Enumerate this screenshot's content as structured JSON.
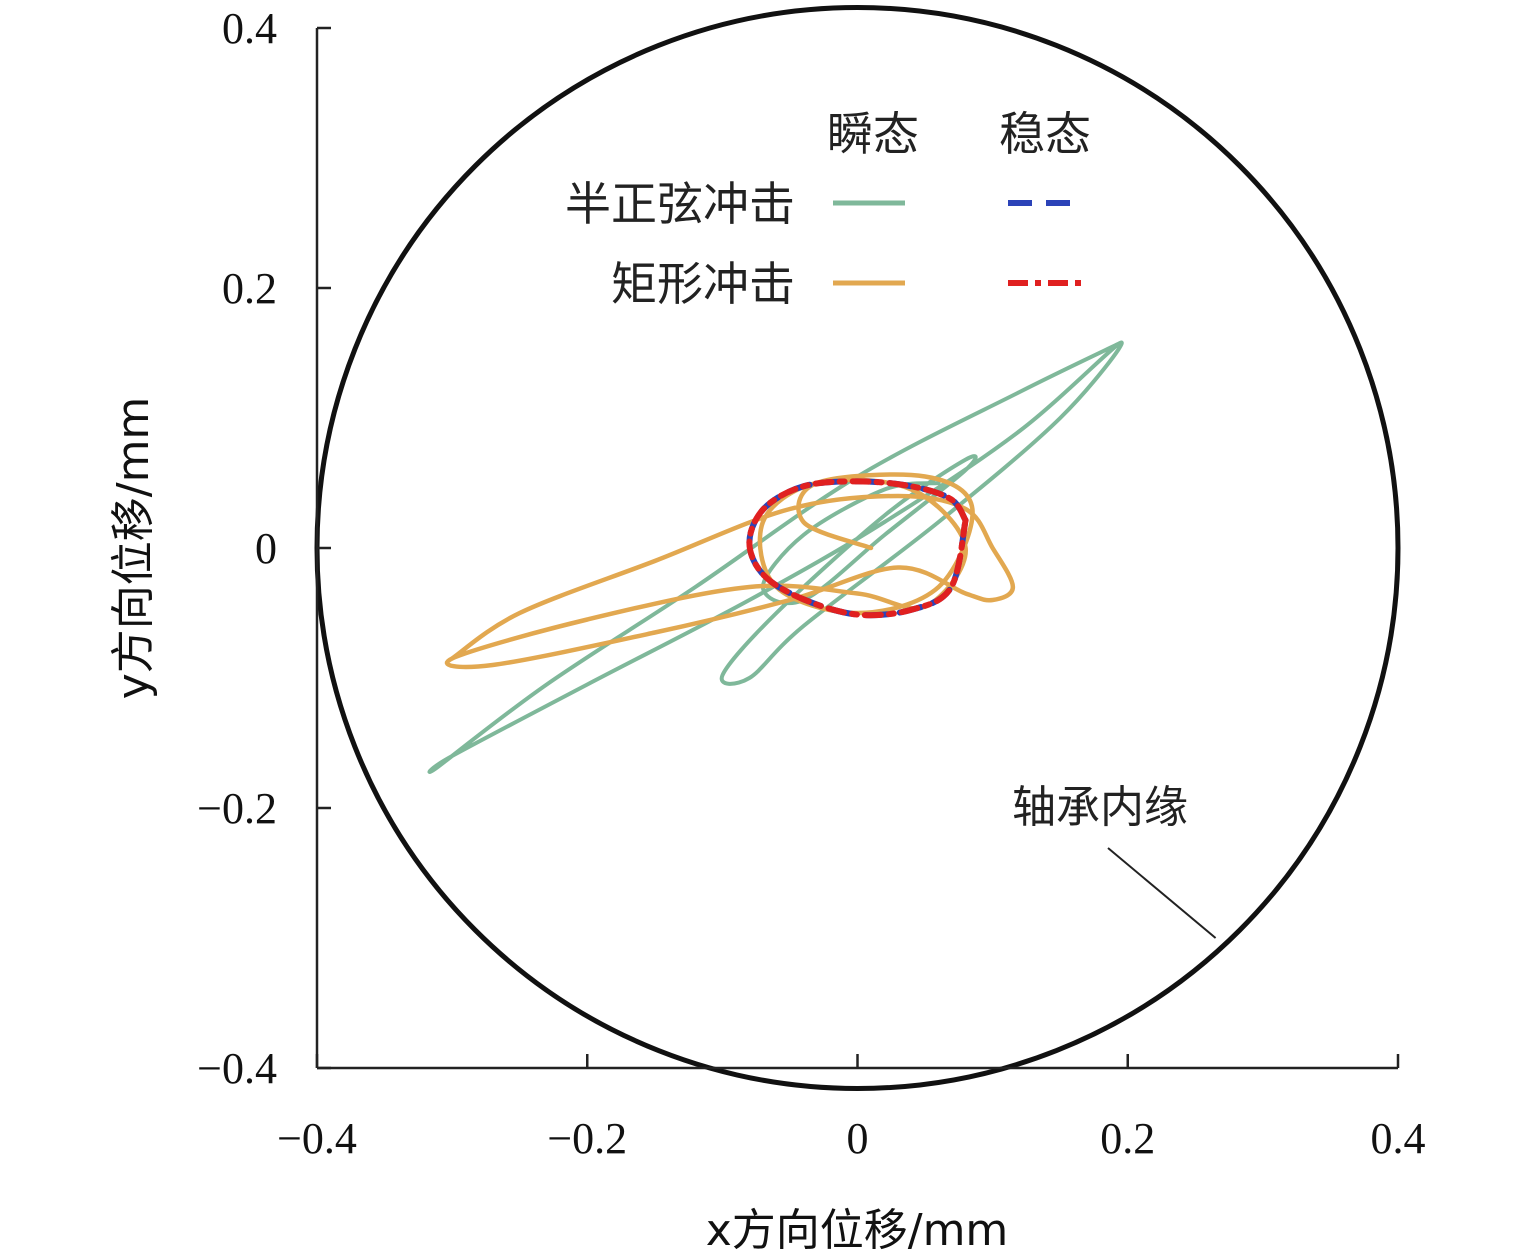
{
  "chart_data": {
    "type": "line",
    "xlabel": "x方向位移/mm",
    "ylabel": "y方向位移/mm",
    "xlim": [
      -0.4,
      0.4
    ],
    "ylim": [
      -0.4,
      0.4
    ],
    "xticks": [
      "−0.4",
      "−0.2",
      "0",
      "0.2",
      "0.4"
    ],
    "yticks": [
      "0.4",
      "0.2",
      "0",
      "−0.2",
      "−0.4"
    ],
    "grid": false,
    "legend": {
      "position": "top-right",
      "col_headers": [
        "瞬态",
        "稳态"
      ],
      "row_labels": [
        "半正弦冲击",
        "矩形冲击"
      ]
    },
    "colors": {
      "half_sine_transient": "#7fb89a",
      "half_sine_steady": "#2b43b8",
      "rect_transient": "#e2a850",
      "rect_steady": "#e02020",
      "bearing": "#111111"
    },
    "bearing_circle": {
      "center": [
        0,
        0
      ],
      "radius": 0.4
    },
    "annotation": {
      "text": "轴承内缘",
      "target": [
        0.265,
        -0.3
      ]
    },
    "series": [
      {
        "name": "半正弦冲击 瞬态",
        "x": [
          0.195,
          0.12,
          0.0,
          -0.12,
          -0.23,
          -0.31,
          -0.3,
          -0.2,
          -0.08,
          0.02,
          0.12,
          0.195,
          0.15,
          0.06,
          -0.04,
          -0.08,
          -0.1,
          -0.06,
          0.02,
          0.08,
          0.08,
          0.02,
          -0.04,
          -0.07,
          -0.04,
          0.02,
          0.06
        ],
        "y": [
          0.158,
          0.12,
          0.055,
          -0.03,
          -0.105,
          -0.168,
          -0.16,
          -0.105,
          -0.04,
          0.02,
          0.09,
          0.158,
          0.1,
          0.02,
          -0.06,
          -0.1,
          -0.098,
          -0.05,
          0.025,
          0.068,
          0.06,
          0.01,
          -0.04,
          -0.03,
          0.01,
          0.045,
          0.05
        ]
      },
      {
        "name": "矩形冲击 瞬态",
        "x": [
          -0.3,
          -0.25,
          -0.15,
          -0.05,
          0.03,
          0.08,
          0.1,
          0.115,
          0.1,
          0.08,
          0.03,
          -0.05,
          -0.15,
          -0.27,
          -0.3,
          -0.2,
          -0.08,
          0.0,
          0.05,
          0.08,
          0.04,
          -0.03,
          -0.07,
          -0.06,
          0.0,
          0.06,
          0.085,
          0.05,
          -0.03,
          -0.04,
          0.01
        ],
        "y": [
          -0.085,
          -0.05,
          -0.01,
          0.03,
          0.04,
          0.03,
          0.0,
          -0.03,
          -0.04,
          -0.035,
          -0.015,
          -0.04,
          -0.065,
          -0.09,
          -0.085,
          -0.055,
          -0.03,
          -0.035,
          -0.045,
          0.0,
          0.045,
          0.05,
          0.02,
          -0.03,
          -0.05,
          -0.03,
          0.03,
          0.055,
          0.05,
          0.02,
          0.0
        ]
      },
      {
        "name": "半正弦冲击 稳态",
        "x": [
          0.08,
          0.0693,
          0.04,
          0.0,
          -0.04,
          -0.0693,
          -0.08,
          -0.0693,
          -0.04,
          0.0,
          0.04,
          0.0693,
          0.08
        ],
        "y": [
          0.0213,
          0.0375,
          0.0475,
          0.0512,
          0.0475,
          0.0303,
          0.004,
          -0.021,
          -0.0395,
          -0.0512,
          -0.0475,
          -0.0303,
          0.0213
        ]
      },
      {
        "name": "矩形冲击 稳态",
        "x": [
          0.08,
          0.0693,
          0.04,
          0.0,
          -0.04,
          -0.0693,
          -0.08,
          -0.0693,
          -0.04,
          0.0,
          0.04,
          0.0693,
          0.08
        ],
        "y": [
          0.0213,
          0.0375,
          0.0475,
          0.0512,
          0.0475,
          0.0303,
          0.004,
          -0.021,
          -0.0395,
          -0.0512,
          -0.0475,
          -0.0303,
          0.0213
        ]
      }
    ]
  }
}
